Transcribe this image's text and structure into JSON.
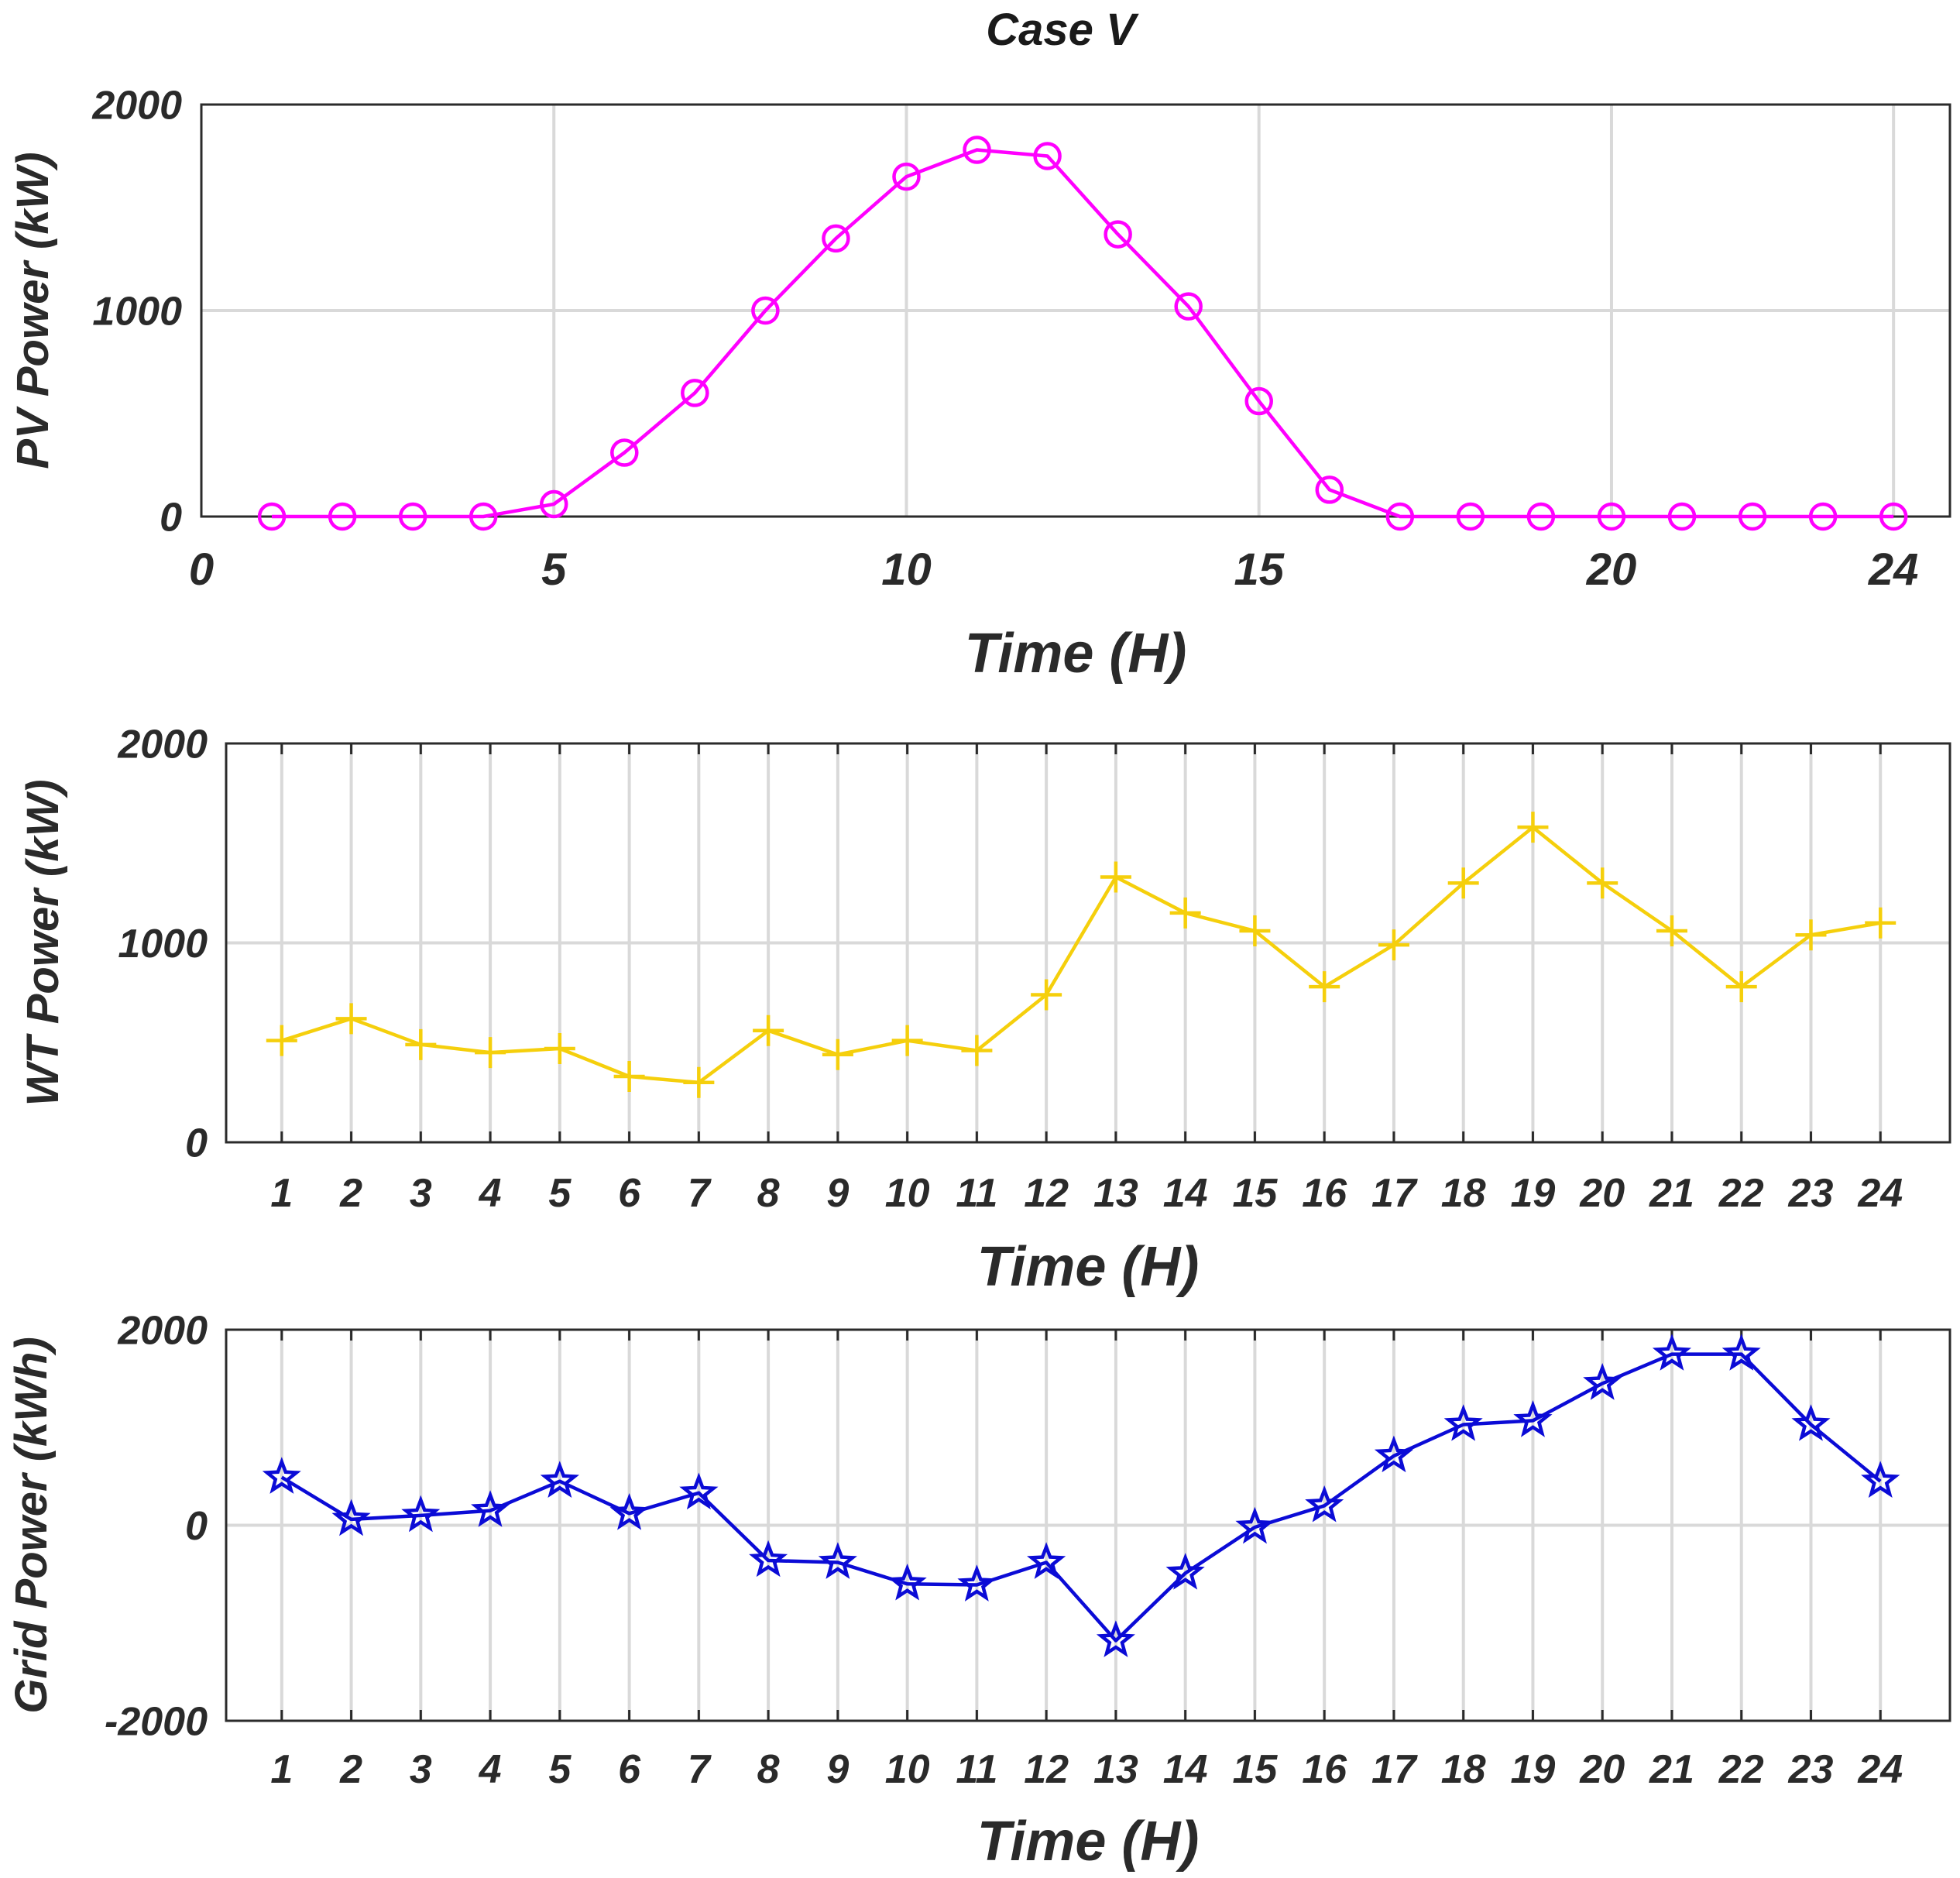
{
  "figure_title": "Case V",
  "chart_data": [
    {
      "type": "line",
      "title": "Case V",
      "xlabel": "Time (H)",
      "ylabel": "PV Power (kW)",
      "xlim": [
        0,
        24.8
      ],
      "ylim": [
        0,
        2000
      ],
      "xticks": [
        0,
        5,
        10,
        15,
        20,
        24
      ],
      "xtick_labels": [
        "0",
        "5",
        "10",
        "15",
        "20",
        "24"
      ],
      "yticks": [
        0,
        1000,
        2000
      ],
      "ytick_labels": [
        "0",
        "1000",
        "2000"
      ],
      "grid": true,
      "series": [
        {
          "name": "PV Power",
          "color": "#ff00ff",
          "marker": "circle",
          "x": [
            1,
            2,
            3,
            4,
            5,
            6,
            7,
            8,
            9,
            10,
            11,
            12,
            13,
            14,
            15,
            16,
            17,
            18,
            19,
            20,
            21,
            22,
            23,
            24
          ],
          "values": [
            0,
            0,
            0,
            0,
            60,
            310,
            600,
            1000,
            1350,
            1650,
            1780,
            1750,
            1370,
            1020,
            560,
            130,
            0,
            0,
            0,
            0,
            0,
            0,
            0,
            0
          ]
        }
      ]
    },
    {
      "type": "line",
      "xlabel": "Time (H)",
      "ylabel": "WT Power (kW)",
      "xlim": [
        0.2,
        25
      ],
      "ylim": [
        0,
        2000
      ],
      "xticks": [
        1,
        2,
        3,
        4,
        5,
        6,
        7,
        8,
        9,
        10,
        11,
        12,
        13,
        14,
        15,
        16,
        17,
        18,
        19,
        20,
        21,
        22,
        23,
        24
      ],
      "xtick_labels": [
        "1",
        "2",
        "3",
        "4",
        "5",
        "6",
        "7",
        "8",
        "9",
        "10",
        "11",
        "12",
        "13",
        "14",
        "15",
        "16",
        "17",
        "18",
        "19",
        "20",
        "21",
        "22",
        "23",
        "24"
      ],
      "yticks": [
        0,
        1000,
        2000
      ],
      "ytick_labels": [
        "0",
        "1000",
        "2000"
      ],
      "grid": true,
      "series": [
        {
          "name": "WT Power",
          "color": "#f5cf0c",
          "marker": "plus",
          "x": [
            1,
            2,
            3,
            4,
            5,
            6,
            7,
            8,
            9,
            10,
            11,
            12,
            13,
            14,
            15,
            16,
            17,
            18,
            19,
            20,
            21,
            22,
            23,
            24
          ],
          "values": [
            510,
            620,
            490,
            450,
            470,
            330,
            300,
            560,
            440,
            510,
            460,
            740,
            1330,
            1150,
            1060,
            780,
            990,
            1300,
            1580,
            1300,
            1060,
            780,
            1040,
            1100
          ]
        }
      ]
    },
    {
      "type": "line",
      "xlabel": "Time (H)",
      "ylabel": "Grid Power (kWh)",
      "xlim": [
        0.2,
        25
      ],
      "ylim": [
        -2000,
        2000
      ],
      "xticks": [
        1,
        2,
        3,
        4,
        5,
        6,
        7,
        8,
        9,
        10,
        11,
        12,
        13,
        14,
        15,
        16,
        17,
        18,
        19,
        20,
        21,
        22,
        23,
        24
      ],
      "xtick_labels": [
        "1",
        "2",
        "3",
        "4",
        "5",
        "6",
        "7",
        "8",
        "9",
        "10",
        "11",
        "12",
        "13",
        "14",
        "15",
        "16",
        "17",
        "18",
        "19",
        "20",
        "21",
        "22",
        "23",
        "24"
      ],
      "yticks": [
        -2000,
        0,
        2000
      ],
      "ytick_labels": [
        "-2000",
        "0",
        "2000"
      ],
      "grid": true,
      "series": [
        {
          "name": "Grid Power",
          "color": "#0b0bd6",
          "marker": "star",
          "x": [
            1,
            2,
            3,
            4,
            5,
            6,
            7,
            8,
            9,
            10,
            11,
            12,
            13,
            14,
            15,
            16,
            17,
            18,
            19,
            20,
            21,
            22,
            23,
            24
          ],
          "values": [
            490,
            60,
            100,
            150,
            450,
            120,
            330,
            -360,
            -380,
            -600,
            -610,
            -380,
            -1180,
            -490,
            -20,
            200,
            710,
            1030,
            1070,
            1450,
            1750,
            1750,
            1030,
            450
          ]
        }
      ]
    }
  ]
}
